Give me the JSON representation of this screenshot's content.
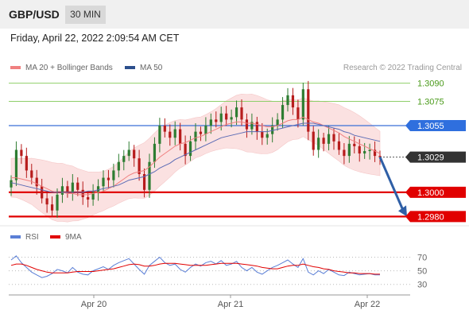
{
  "header": {
    "symbol": "GBP/USD",
    "timeframe": "30 MIN"
  },
  "datetime": "Friday, April 22, 2022 2:09:54 AM CET",
  "legend": {
    "ma20_label": "MA 20 + Bollinger Bands",
    "ma50_label": "MA 50",
    "credit": "Research © 2022 Trading Central"
  },
  "rsi_legend": {
    "rsi_label": "RSI",
    "ma_label": "9MA"
  },
  "colors": {
    "up": "#2e7d32",
    "down": "#b71c1c",
    "ma20": "#f08080",
    "ma50": "#5b6bb5",
    "bb_fill": "#fbdede",
    "support": "#e10000",
    "resistance": "#8fcf6a",
    "pivot": "#3a6fd8",
    "current": "#333333",
    "arrow": "#2f5fa6"
  },
  "chart_data": [
    {
      "type": "candlestick",
      "instrument": "GBP/USD",
      "interval": "30 MIN",
      "x_ticks": [
        "Apr 20",
        "Apr 21",
        "Apr 22"
      ],
      "ylim": [
        1.2975,
        1.3095
      ],
      "levels": [
        {
          "label": "1.3090",
          "value": 1.309,
          "kind": "resistance"
        },
        {
          "label": "1.3075",
          "value": 1.3075,
          "kind": "resistance"
        },
        {
          "label": "1.3055",
          "value": 1.3055,
          "kind": "pivot"
        },
        {
          "label": "1.3029",
          "value": 1.3029,
          "kind": "current"
        },
        {
          "label": "1.3000",
          "value": 1.3,
          "kind": "support"
        },
        {
          "label": "1.2980",
          "value": 1.298,
          "kind": "support"
        }
      ],
      "series_close": [
        1.301,
        1.3035,
        1.303,
        1.3018,
        1.3012,
        1.3005,
        1.2995,
        1.299,
        1.2985,
        1.2998,
        1.3005,
        1.3,
        1.3008,
        1.3002,
        1.2996,
        1.2994,
        1.3,
        1.3005,
        1.3012,
        1.301,
        1.3018,
        1.3025,
        1.303,
        1.3035,
        1.3028,
        1.3015,
        1.3002,
        1.3025,
        1.304,
        1.3055,
        1.305,
        1.3045,
        1.3052,
        1.304,
        1.303,
        1.3042,
        1.305,
        1.3048,
        1.3055,
        1.306,
        1.3058,
        1.3065,
        1.306,
        1.3062,
        1.307,
        1.306,
        1.3052,
        1.3058,
        1.305,
        1.3045,
        1.3048,
        1.3055,
        1.306,
        1.3072,
        1.308,
        1.307,
        1.306,
        1.3085,
        1.305,
        1.3035,
        1.3045,
        1.304,
        1.3048,
        1.3042,
        1.3035,
        1.303,
        1.304,
        1.3038,
        1.3032,
        1.3034,
        1.3035,
        1.303,
        1.3029
      ],
      "ma20": [
        1.3012,
        1.3012,
        1.3011,
        1.301,
        1.3009,
        1.3007,
        1.3005,
        1.3003,
        1.3001,
        1.3,
        1.3,
        1.2999,
        1.2999,
        1.2998,
        1.2998,
        1.2998,
        1.2999,
        1.3,
        1.3001,
        1.3003,
        1.3005,
        1.3008,
        1.3011,
        1.3014,
        1.3016,
        1.3017,
        1.3018,
        1.3021,
        1.3025,
        1.3029,
        1.3032,
        1.3035,
        1.3038,
        1.304,
        1.3041,
        1.3043,
        1.3045,
        1.3046,
        1.3048,
        1.305,
        1.3052,
        1.3054,
        1.3056,
        1.3057,
        1.3058,
        1.3058,
        1.3057,
        1.3057,
        1.3056,
        1.3055,
        1.3054,
        1.3054,
        1.3055,
        1.3057,
        1.3059,
        1.306,
        1.306,
        1.3062,
        1.306,
        1.3058,
        1.3057,
        1.3055,
        1.3053,
        1.3051,
        1.3049,
        1.3046,
        1.3044,
        1.3042,
        1.304,
        1.3038,
        1.3036,
        1.3034,
        1.3032
      ],
      "ma50": [
        1.3008,
        1.3007,
        1.3006,
        1.3005,
        1.3004,
        1.3003,
        1.3002,
        1.3001,
        1.3,
        1.3,
        1.3,
        1.3,
        1.3,
        1.3,
        1.3,
        1.3001,
        1.3001,
        1.3002,
        1.3003,
        1.3004,
        1.3005,
        1.3006,
        1.3008,
        1.301,
        1.3011,
        1.3012,
        1.3013,
        1.3015,
        1.3017,
        1.302,
        1.3022,
        1.3024,
        1.3027,
        1.3029,
        1.3031,
        1.3033,
        1.3035,
        1.3037,
        1.3039,
        1.3041,
        1.3043,
        1.3045,
        1.3046,
        1.3047,
        1.3048,
        1.3049,
        1.305,
        1.305,
        1.305,
        1.305,
        1.305,
        1.3051,
        1.3052,
        1.3053,
        1.3054,
        1.3055,
        1.3056,
        1.3057,
        1.3057,
        1.3057,
        1.3056,
        1.3055,
        1.3054,
        1.3053,
        1.3052,
        1.305,
        1.3049,
        1.3047,
        1.3046,
        1.3045,
        1.3044,
        1.3043,
        1.3042
      ],
      "projection": {
        "from": 1.3029,
        "to": 1.298
      },
      "rsi_panel": {
        "ticks": [
          "70",
          "50",
          "30"
        ],
        "ylim": [
          25,
          80
        ],
        "rsi": [
          66,
          72,
          62,
          55,
          48,
          44,
          40,
          42,
          46,
          52,
          50,
          47,
          55,
          48,
          45,
          44,
          50,
          53,
          56,
          52,
          58,
          62,
          65,
          68,
          60,
          52,
          45,
          58,
          64,
          70,
          62,
          58,
          60,
          52,
          48,
          55,
          60,
          57,
          62,
          64,
          60,
          65,
          58,
          60,
          64,
          55,
          50,
          55,
          48,
          45,
          50,
          55,
          58,
          62,
          66,
          60,
          55,
          68,
          48,
          44,
          50,
          46,
          52,
          48,
          44,
          43,
          48,
          46,
          44,
          45,
          46,
          44,
          44
        ],
        "ma9": [
          58,
          60,
          60,
          58,
          55,
          52,
          50,
          48,
          47,
          47,
          47,
          47,
          48,
          49,
          49,
          49,
          49,
          50,
          51,
          52,
          53,
          55,
          57,
          59,
          60,
          59,
          57,
          57,
          58,
          60,
          61,
          61,
          61,
          60,
          59,
          58,
          58,
          58,
          58,
          59,
          60,
          61,
          61,
          61,
          61,
          60,
          59,
          58,
          57,
          55,
          54,
          53,
          53,
          55,
          57,
          58,
          58,
          60,
          58,
          56,
          55,
          53,
          52,
          50,
          49,
          48,
          47,
          47,
          46,
          46,
          46,
          45,
          45
        ]
      }
    }
  ]
}
